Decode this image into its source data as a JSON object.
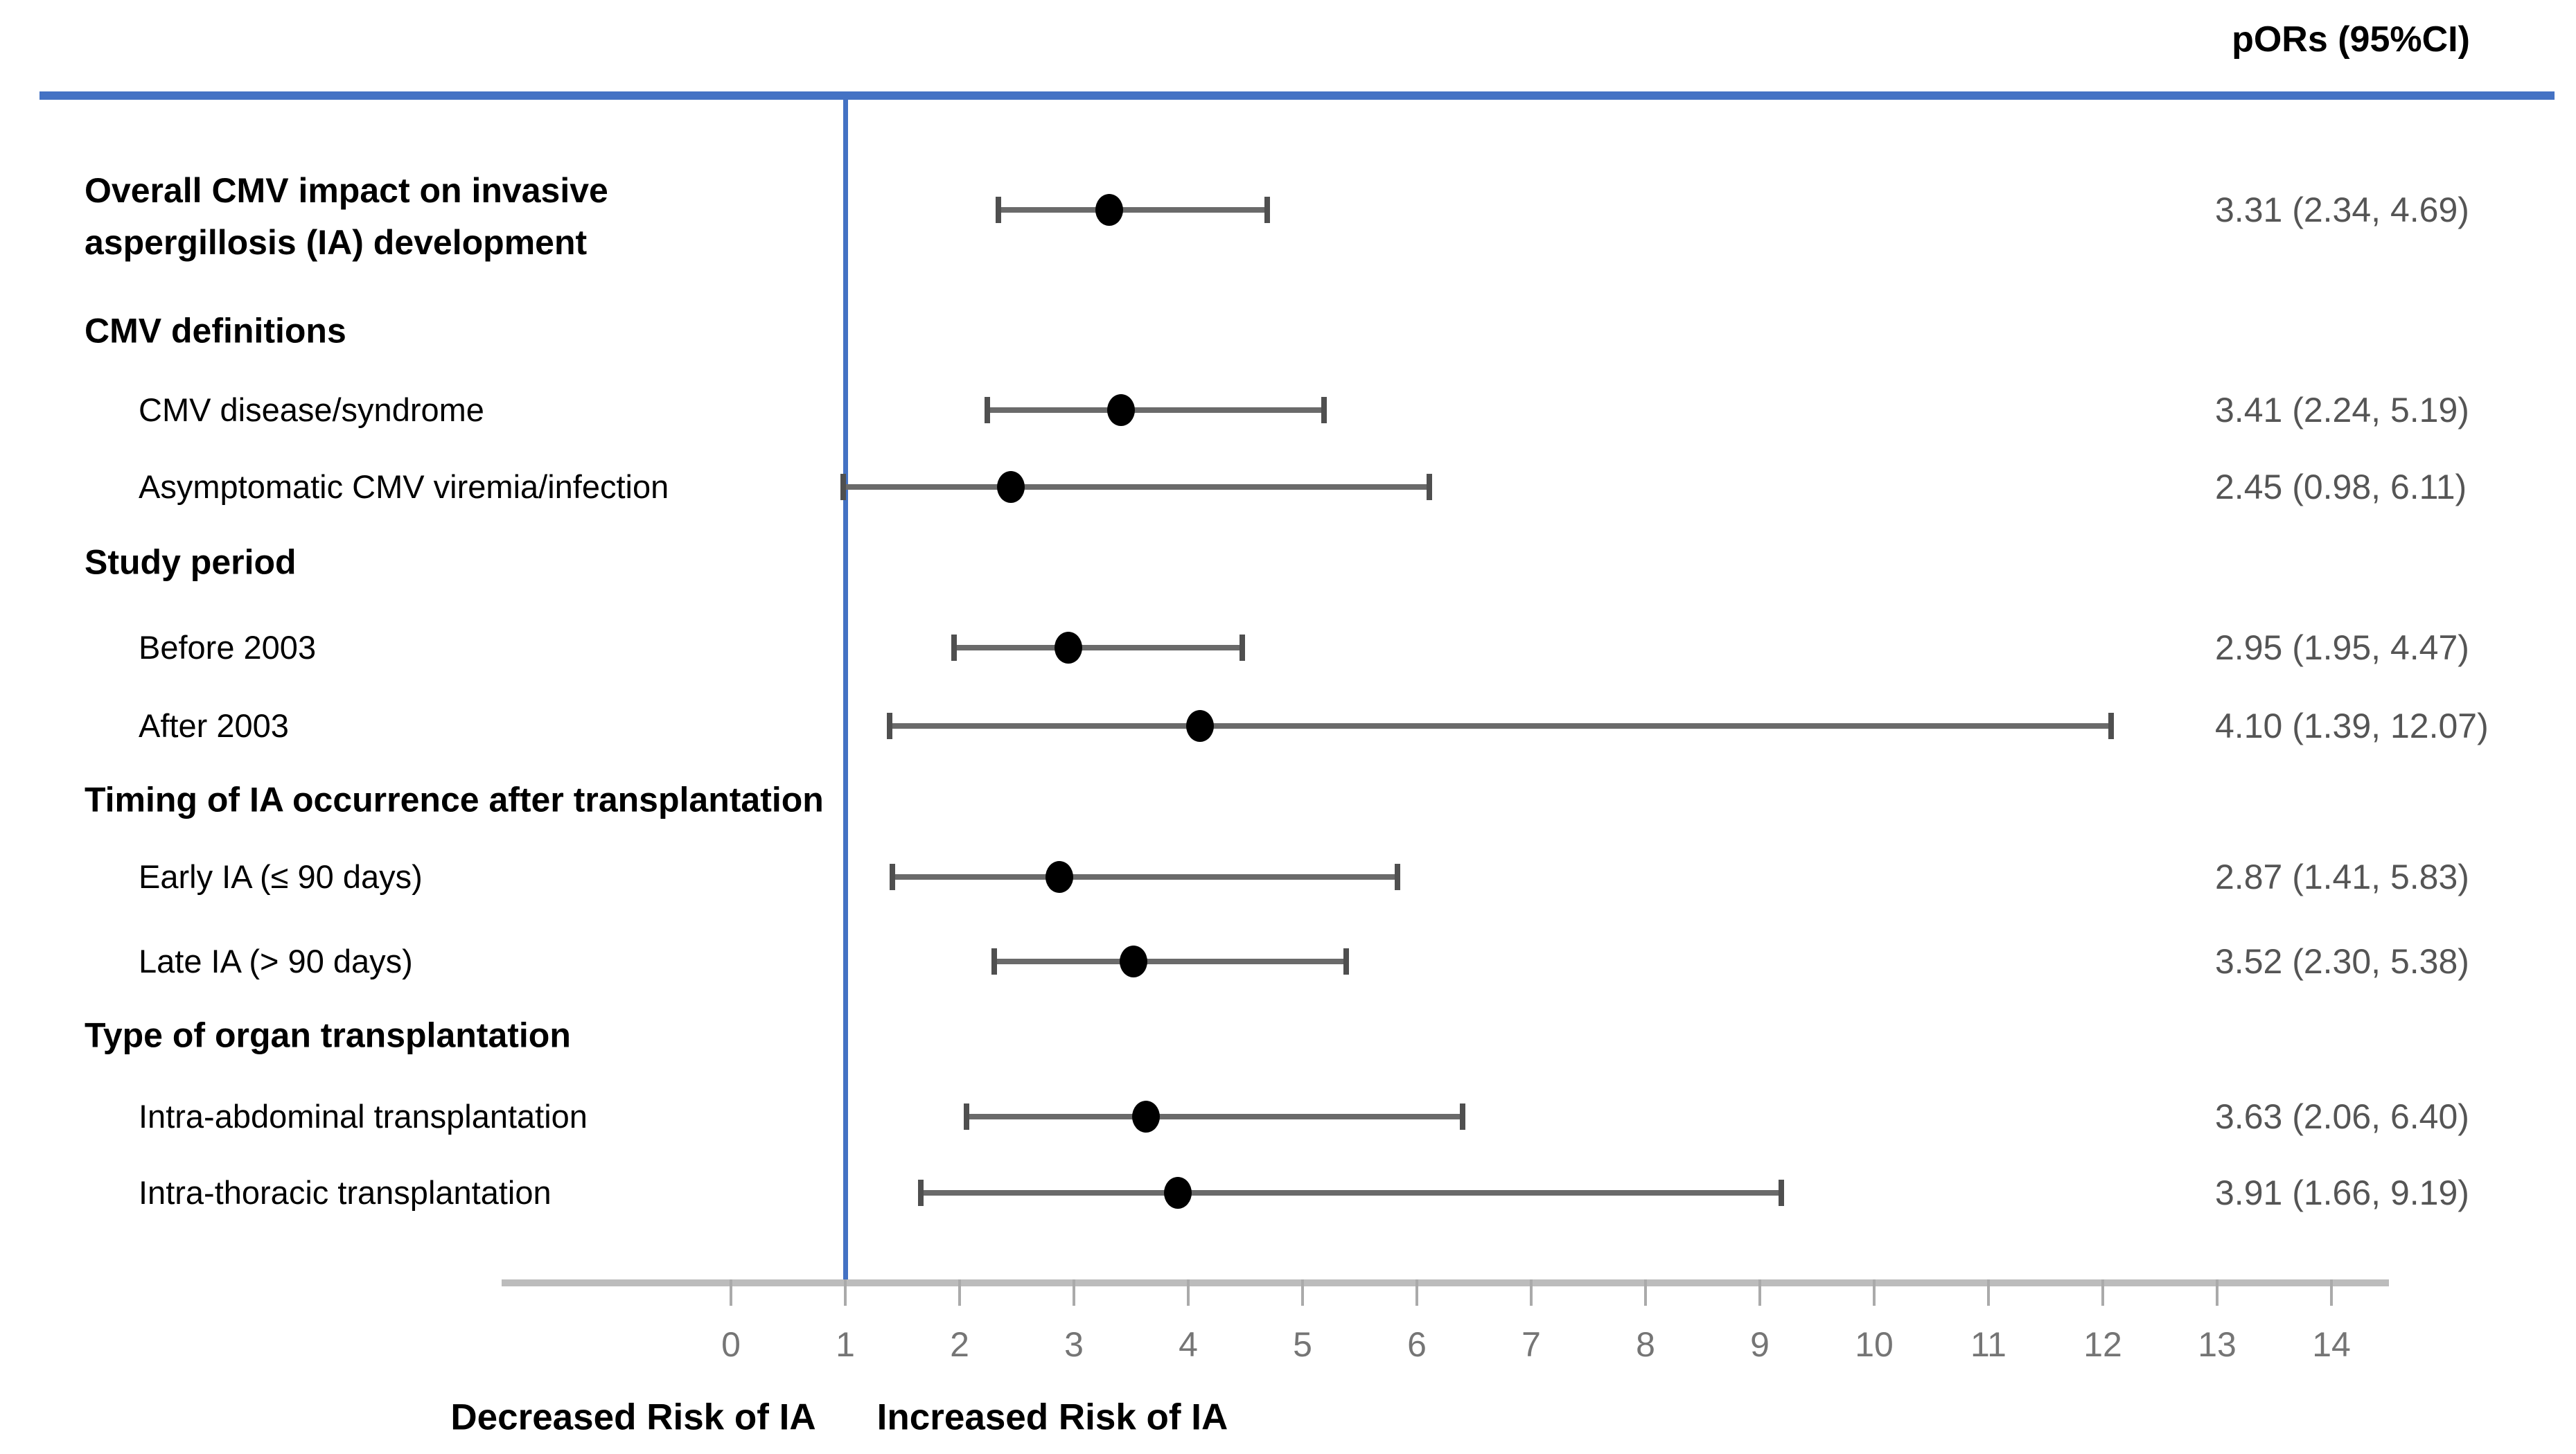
{
  "header": {
    "title": "pORs (95%CI)"
  },
  "footer": {
    "left_label": "Decreased Risk of IA",
    "right_label": "Increased Risk of IA"
  },
  "colors": {
    "accent_blue": "#4472c4",
    "axis_gray": "#bcbcbc",
    "tick_label_gray": "#757575",
    "bar_gray": "#6a6a6a",
    "value_gray": "#555555",
    "marker_black": "#000000"
  },
  "chart_data": {
    "type": "forest",
    "title": "pORs (95%CI)",
    "x_axis": {
      "min": 0,
      "max": 14,
      "ticks": [
        0,
        1,
        2,
        3,
        4,
        5,
        6,
        7,
        8,
        9,
        10,
        11,
        12,
        13,
        14
      ],
      "reference_line_x": 1,
      "grid": false
    },
    "axis_annotations": {
      "left_of_reference": "Decreased Risk of IA",
      "right_of_reference": "Increased Risk of IA"
    },
    "rows": [
      {
        "label": "Overall CMV impact on invasive aspergillosis (IA) development",
        "label_lines": [
          "Overall CMV impact on invasive",
          "aspergillosis (IA) development"
        ],
        "bold": true,
        "indent": 0,
        "header": false,
        "or": 3.31,
        "ci_low": 2.34,
        "ci_high": 4.69,
        "display": "3.31 (2.34, 4.69)"
      },
      {
        "label": "CMV definitions",
        "bold": true,
        "indent": 0,
        "header": true
      },
      {
        "label": "CMV disease/syndrome",
        "bold": false,
        "indent": 1,
        "header": false,
        "or": 3.41,
        "ci_low": 2.24,
        "ci_high": 5.19,
        "display": "3.41 (2.24, 5.19)"
      },
      {
        "label": "Asymptomatic CMV viremia/infection",
        "bold": false,
        "indent": 1,
        "header": false,
        "or": 2.45,
        "ci_low": 0.98,
        "ci_high": 6.11,
        "display": "2.45 (0.98, 6.11)"
      },
      {
        "label": "Study period",
        "bold": true,
        "indent": 0,
        "header": true
      },
      {
        "label": "Before 2003",
        "bold": false,
        "indent": 1,
        "header": false,
        "or": 2.95,
        "ci_low": 1.95,
        "ci_high": 4.47,
        "display": "2.95 (1.95, 4.47)"
      },
      {
        "label": "After 2003",
        "bold": false,
        "indent": 1,
        "header": false,
        "or": 4.1,
        "ci_low": 1.39,
        "ci_high": 12.07,
        "display": "4.10 (1.39, 12.07)"
      },
      {
        "label": "Timing of IA occurrence after transplantation",
        "bold": true,
        "indent": 0,
        "header": true
      },
      {
        "label": "Early IA (≤ 90 days)",
        "bold": false,
        "indent": 1,
        "header": false,
        "or": 2.87,
        "ci_low": 1.41,
        "ci_high": 5.83,
        "display": "2.87 (1.41, 5.83)"
      },
      {
        "label": "Late IA (> 90 days)",
        "bold": false,
        "indent": 1,
        "header": false,
        "or": 3.52,
        "ci_low": 2.3,
        "ci_high": 5.38,
        "display": "3.52 (2.30, 5.38)"
      },
      {
        "label": "Type of organ transplantation",
        "bold": true,
        "indent": 0,
        "header": true
      },
      {
        "label": "Intra-abdominal transplantation",
        "bold": false,
        "indent": 1,
        "header": false,
        "or": 3.63,
        "ci_low": 2.06,
        "ci_high": 6.4,
        "display": "3.63 (2.06, 6.40)"
      },
      {
        "label": "Intra-thoracic transplantation",
        "bold": false,
        "indent": 1,
        "header": false,
        "or": 3.91,
        "ci_low": 1.66,
        "ci_high": 9.19,
        "display": "3.91 (1.66, 9.19)"
      }
    ]
  }
}
